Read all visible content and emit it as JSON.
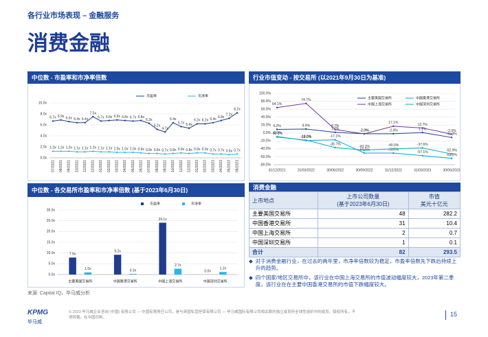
{
  "page": {
    "section": "各行业市场表现 – 金融服务",
    "title": "消费金融"
  },
  "chart_data": [
    {
      "type": "line",
      "title": "中位数 - 市盈率和市净率倍数",
      "categories": [
        "07/2021",
        "08/2021",
        "09/2021",
        "10/2021",
        "11/2021",
        "12/2021",
        "01/2022",
        "02/2022",
        "03/2022",
        "04/2022",
        "05/2022",
        "06/2022",
        "07/2022",
        "08/2022",
        "09/2022",
        "10/2022",
        "11/2022",
        "12/2022",
        "01/2023",
        "02/2023",
        "03/2023",
        "04/2023",
        "05/2023",
        "06/2023"
      ],
      "series": [
        {
          "name": "市盈率",
          "color": "#1f3d8c",
          "values": [
            6.7,
            6.9,
            6.6,
            6.4,
            6.4,
            7.5,
            6.7,
            6.8,
            6.9,
            6.8,
            6.7,
            6.8,
            6.3,
            5.2,
            4.7,
            6.4,
            5.7,
            5.4,
            6.2,
            6.2,
            6.4,
            6.8,
            7.2,
            8.2
          ],
          "value_labels": [
            "6.7x",
            "6.9x",
            "6.6x",
            "6.4x",
            "6.4x",
            "7.5x",
            "6.7x",
            "6.8x",
            "6.9x",
            "6.8x",
            "6.7x",
            "6.8x",
            "6.3x",
            "5.2x",
            "4.7x",
            "6.4x",
            "5.7x",
            "5.4x",
            "6.2x",
            "6.2x",
            "6.4x",
            "6.8x",
            "7.2x",
            "8.2x"
          ]
        },
        {
          "name": "市净率",
          "color": "#2bb6e6",
          "values": [
            1.2,
            1.2,
            1.2,
            1.1,
            1.1,
            1.2,
            1.1,
            1.1,
            1.0,
            1.0,
            1.0,
            0.9,
            0.8,
            0.8,
            0.7,
            0.8,
            0.9,
            0.8,
            0.9,
            0.9,
            0.7,
            0.7,
            0.6,
            0.7
          ],
          "value_labels": [
            "1.2x",
            "1.2x",
            "1.2x",
            "1.1x",
            "1.1x",
            "1.2x",
            "1.1x",
            "1.1x",
            "1.0x",
            "1.0x",
            "1.0x",
            "0.9x",
            "0.8x",
            "0.8x",
            "0.7x",
            "0.8x",
            "0.9x",
            "0.8x",
            "0.9x",
            "0.9x",
            "0.7x",
            "0.7x",
            "0.6x",
            "0.7x"
          ]
        }
      ],
      "ylim": [
        0,
        10
      ],
      "yticks": [
        {
          "value": 0,
          "label": "0.0x"
        },
        {
          "value": 2,
          "label": "2.0x"
        },
        {
          "value": 4,
          "label": "4.0x"
        },
        {
          "value": 6,
          "label": "6.0x"
        },
        {
          "value": 8,
          "label": "8.0x"
        },
        {
          "value": 10,
          "label": "10.0x"
        }
      ],
      "grid": true,
      "legend": "top"
    },
    {
      "type": "line",
      "title": "行业市值变动 - 按交易所 (以2021年9月30日为基准)",
      "categories": [
        "31/12/2021",
        "31/03/2022",
        "30/06/2022",
        "30/09/2022",
        "31/12/2022",
        "31/03/2023",
        "30/06/2023"
      ],
      "series": [
        {
          "name": "主要美国交易所",
          "color": "#1f3d8c",
          "values": [
            9.2,
            9.9,
            1.7,
            -2.0,
            -2.0,
            1.2,
            -11.3
          ],
          "value_labels": [
            "9.2%",
            "9.9%",
            "1.7%",
            "-2.0%",
            "-2.0%",
            "1.2%",
            "-11.3%"
          ]
        },
        {
          "name": "中国香港交易所",
          "color": "#00a3e0",
          "values": [
            -8.9,
            -19.0,
            -17.1,
            -50.5,
            -50.5,
            -57.1,
            -63.9
          ],
          "value_labels": [
            "-8.9%",
            "-19.0%",
            "-17.1%",
            "-50.5%",
            "-50.5%",
            "-57.1%",
            "-63.9%"
          ]
        },
        {
          "name": "中国上海交易所",
          "color": "#7030a0",
          "values": [
            64.1,
            74.7,
            8.7,
            -2.0,
            17.1,
            12.7,
            -2.9
          ],
          "value_labels": [
            "64.1%",
            "74.7%",
            "8.7%",
            "-2.0%",
            "17.1%",
            "12.7%",
            "-2.9%"
          ]
        },
        {
          "name": "中国深圳交易所",
          "color": "#00b2a9",
          "values": [
            -10.1,
            -18.0,
            -36.7,
            -43.2,
            -40.0,
            -37.6,
            -52.9
          ],
          "value_labels": [
            "-10.1%",
            "-18.0%",
            "-36.7%",
            "-43.2%",
            "-40.0%",
            "-37.6%",
            "-52.9%"
          ]
        }
      ],
      "ylim": [
        -80,
        100
      ],
      "yticks": [
        {
          "value": -80,
          "label": "-80.0%"
        },
        {
          "value": -60,
          "label": "-60.0%"
        },
        {
          "value": -40,
          "label": "-40.0%"
        },
        {
          "value": -20,
          "label": "-20.0%"
        },
        {
          "value": 0,
          "label": "0.0%"
        },
        {
          "value": 20,
          "label": "20.0%"
        },
        {
          "value": 40,
          "label": "40.0%"
        },
        {
          "value": 60,
          "label": "60.0%"
        },
        {
          "value": 80,
          "label": "80.0%"
        },
        {
          "value": 100,
          "label": "100.0%"
        }
      ],
      "grid": true,
      "legend": "upper right"
    },
    {
      "type": "bar",
      "title": "中位数 - 各交易所市盈率和市净率倍数 (基于2023年6月30日)",
      "categories": [
        "主要美国交易所",
        "中国香港交易所",
        "中国上海交易所",
        "中国深圳交易所"
      ],
      "series": [
        {
          "name": "市盈率",
          "color": "#1f3d8c",
          "values": [
            7.9,
            9.2,
            24.1,
            0.0
          ],
          "value_labels": [
            "7.9x",
            "9.2x",
            "24.1x",
            "0.0x"
          ]
        },
        {
          "name": "市净率",
          "color": "#2bb6e6",
          "values": [
            1.0,
            0.3,
            2.7,
            1.2
          ],
          "value_labels": [
            "1.0x",
            "0.3x",
            "2.7x",
            "1.2x"
          ]
        }
      ],
      "ylim": [
        0,
        30
      ],
      "yticks": [
        {
          "value": 0,
          "label": "0.0x"
        },
        {
          "value": 5,
          "label": "5.0x"
        },
        {
          "value": 10,
          "label": "10.0x"
        },
        {
          "value": 15,
          "label": "15.0x"
        },
        {
          "value": 20,
          "label": "20.0x"
        },
        {
          "value": 25,
          "label": "25.0x"
        },
        {
          "value": 30,
          "label": "30.0x"
        }
      ],
      "grid": true,
      "legend": "top"
    }
  ],
  "table": {
    "title": "消费金融",
    "columns": [
      [
        "上市地点"
      ],
      [
        "上市公司数量",
        "(基于2023年6月30日)"
      ],
      [
        "市值",
        "美元十亿元"
      ]
    ],
    "rows": [
      [
        "主要美国交易所",
        48,
        282.2
      ],
      [
        "中国香港交易所",
        31,
        10.4
      ],
      [
        "中国上海交易所",
        2,
        0.7
      ],
      [
        "中国深圳交易所",
        1,
        0.1
      ]
    ],
    "total": [
      "合计",
      82,
      293.5
    ]
  },
  "notes": [
    "对于消费金融行业，在过去的两年里，市净率倍数较为稳定，市盈率倍数先下跌后持续上升的趋势。",
    "四个国家/地区交易所中，该行业在中国上海交易所的市值波动幅度较大，2023年第二季度，该行业在在主要中国香港交易所的市值下跌幅度较大。"
  ],
  "source": "来源: Capital IQ，毕马威分析",
  "footer": {
    "logo": "KPMG",
    "logo_cn": "毕马威",
    "copyright": "© 2023 毕马威企业咨询 (中国) 有限公司 — 中国有限责任公司，是与英国私营担保有限公司 — 毕马威国际有限公司相关联的独立成员所全球性组织中的成员。版权所有，不得转载。在中国印刷。",
    "page": "15"
  }
}
